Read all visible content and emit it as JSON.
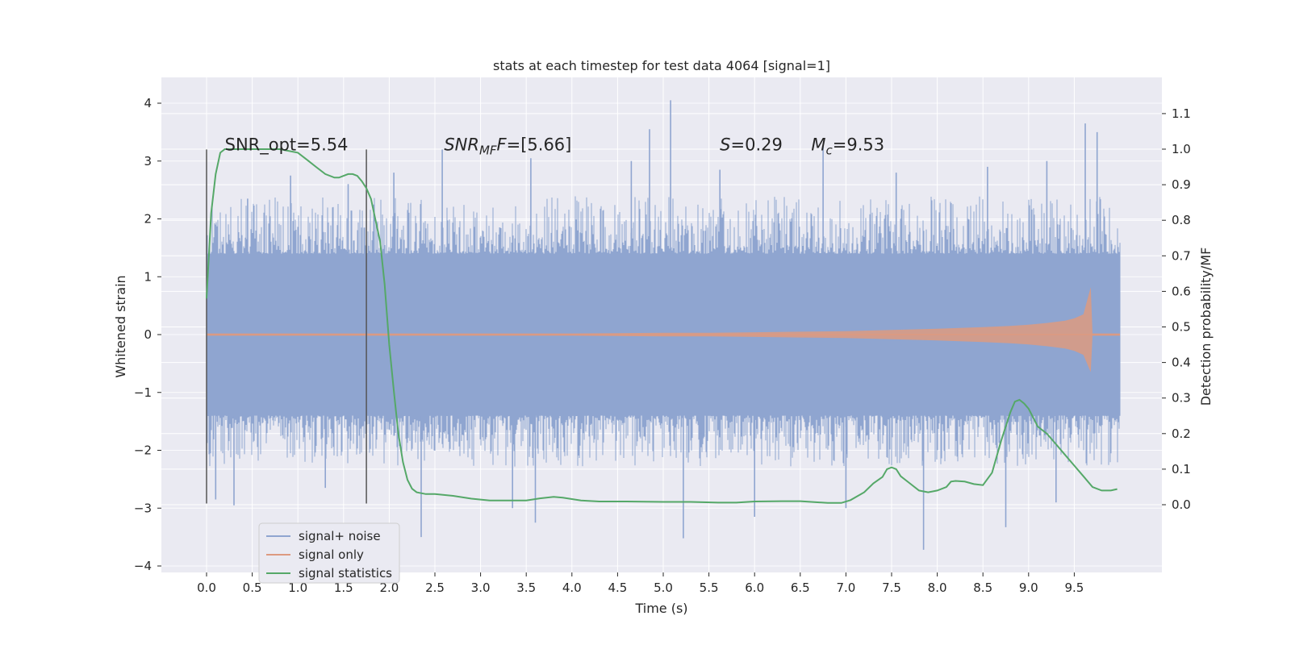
{
  "chart_data": {
    "type": "line",
    "title": "stats at each timestep for test data 4064 [signal=1]",
    "xlabel": "Time (s)",
    "ylabel": "Whitened strain",
    "y2label": "Detection probability/MF",
    "xlim": [
      -0.5,
      10.5
    ],
    "ylim": [
      -4.1,
      4.4
    ],
    "y2lim": [
      -0.19,
      1.2
    ],
    "x_ticks": [
      0.0,
      0.5,
      1.0,
      1.5,
      2.0,
      2.5,
      3.0,
      3.5,
      4.0,
      4.5,
      5.0,
      5.5,
      6.0,
      6.5,
      7.0,
      7.5,
      8.0,
      8.5,
      9.0,
      9.5
    ],
    "x_tick_labels": [
      "0.0",
      "0.5",
      "1.0",
      "1.5",
      "2.0",
      "2.5",
      "3.0",
      "3.5",
      "4.0",
      "4.5",
      "5.0",
      "5.5",
      "6.0",
      "6.5",
      "7.0",
      "7.5",
      "8.0",
      "8.5",
      "9.0",
      "9.5"
    ],
    "y_ticks": [
      4,
      3,
      2,
      1,
      0,
      -1,
      -2,
      -3,
      -4
    ],
    "y_tick_labels": [
      "4",
      "3",
      "2",
      "1",
      "0",
      "−1",
      "−2",
      "−3",
      "−4"
    ],
    "y2_ticks": [
      1.1,
      1.0,
      0.9,
      0.8,
      0.7,
      0.6,
      0.5,
      0.4,
      0.3,
      0.2,
      0.1,
      0.0
    ],
    "y2_tick_labels": [
      "1.1",
      "1.0",
      "0.9",
      "0.8",
      "0.7",
      "0.6",
      "0.5",
      "0.4",
      "0.3",
      "0.2",
      "0.1",
      "0.0"
    ],
    "grid": true,
    "legend_position": "lower-left",
    "vlines": [
      {
        "x": 0.0,
        "ymin": -2.92,
        "ymax": 3.2
      },
      {
        "x": 1.75,
        "ymin": -2.92,
        "ymax": 3.2
      }
    ],
    "annotations": [
      {
        "text": "SNR_opt=5.54",
        "x": 0.2,
        "y": 3.2
      },
      {
        "prefix": "",
        "italic": "SNR",
        "sub": "MF",
        "italic_after": "F",
        "rest": "=[5.66]",
        "x": 2.6,
        "y": 3.2
      },
      {
        "prefix": "",
        "italic": "S",
        "sub": "",
        "italic_after": "",
        "rest": "=0.29",
        "x": 5.62,
        "y": 3.2
      },
      {
        "prefix": "",
        "italic": "M",
        "sub": "c",
        "italic_after": "",
        "rest": "=9.53",
        "x": 6.62,
        "y": 3.2
      }
    ],
    "series": [
      {
        "name": "signal+ noise",
        "color": "#8fa5d0",
        "axis": "left",
        "x_range": [
          0.0,
          10.0
        ],
        "envelope_main": [
          -1.4,
          1.4
        ],
        "envelope_dense": [
          -2.2,
          2.3
        ],
        "peaks": [
          {
            "x": 0.45,
            "y": 2.35
          },
          {
            "x": 0.92,
            "y": 2.75
          },
          {
            "x": 1.55,
            "y": 2.6
          },
          {
            "x": 2.05,
            "y": 2.8
          },
          {
            "x": 2.58,
            "y": 3.2
          },
          {
            "x": 3.55,
            "y": 3.05
          },
          {
            "x": 4.65,
            "y": 3.0
          },
          {
            "x": 4.85,
            "y": 3.55
          },
          {
            "x": 5.08,
            "y": 4.05
          },
          {
            "x": 5.62,
            "y": 2.85
          },
          {
            "x": 6.75,
            "y": 3.25
          },
          {
            "x": 7.55,
            "y": 2.8
          },
          {
            "x": 8.55,
            "y": 2.9
          },
          {
            "x": 9.2,
            "y": 3.0
          },
          {
            "x": 9.62,
            "y": 3.65
          },
          {
            "x": 9.75,
            "y": 3.5
          }
        ],
        "troughs": [
          {
            "x": 0.1,
            "y": -2.85
          },
          {
            "x": 0.3,
            "y": -2.95
          },
          {
            "x": 1.3,
            "y": -2.65
          },
          {
            "x": 2.35,
            "y": -3.5
          },
          {
            "x": 3.35,
            "y": -3.0
          },
          {
            "x": 3.6,
            "y": -3.25
          },
          {
            "x": 5.22,
            "y": -3.52
          },
          {
            "x": 6.0,
            "y": -3.15
          },
          {
            "x": 7.0,
            "y": -3.0
          },
          {
            "x": 7.85,
            "y": -3.72
          },
          {
            "x": 8.75,
            "y": -3.33
          },
          {
            "x": 9.3,
            "y": -2.9
          }
        ]
      },
      {
        "name": "signal only",
        "color": "#dd9a80",
        "axis": "left",
        "x": [
          0.0,
          1.0,
          2.0,
          3.0,
          4.0,
          5.0,
          5.5,
          6.0,
          6.5,
          7.0,
          7.5,
          8.0,
          8.5,
          8.8,
          9.0,
          9.2,
          9.4,
          9.5,
          9.6,
          9.68,
          9.7,
          10.0
        ],
        "amplitude": [
          0.02,
          0.02,
          0.02,
          0.02,
          0.02,
          0.03,
          0.03,
          0.04,
          0.05,
          0.06,
          0.08,
          0.1,
          0.13,
          0.15,
          0.17,
          0.2,
          0.24,
          0.28,
          0.35,
          0.82,
          0.02,
          0.02
        ]
      },
      {
        "name": "signal statistics",
        "color": "#55a868",
        "axis": "right",
        "x": [
          0.0,
          0.05,
          0.1,
          0.15,
          0.2,
          0.3,
          0.5,
          0.8,
          1.0,
          1.1,
          1.2,
          1.3,
          1.4,
          1.45,
          1.5,
          1.55,
          1.6,
          1.65,
          1.7,
          1.75,
          1.8,
          1.9,
          1.95,
          2.0,
          2.05,
          2.1,
          2.15,
          2.2,
          2.25,
          2.3,
          2.4,
          2.5,
          2.7,
          2.9,
          3.1,
          3.3,
          3.5,
          3.65,
          3.8,
          3.9,
          4.1,
          4.3,
          4.6,
          5.0,
          5.3,
          5.6,
          5.8,
          6.0,
          6.3,
          6.5,
          6.8,
          6.95,
          7.05,
          7.2,
          7.3,
          7.4,
          7.45,
          7.5,
          7.55,
          7.6,
          7.7,
          7.8,
          7.9,
          8.0,
          8.1,
          8.15,
          8.2,
          8.3,
          8.4,
          8.5,
          8.6,
          8.7,
          8.8,
          8.85,
          8.9,
          8.95,
          9.0,
          9.1,
          9.2,
          9.3,
          9.4,
          9.5,
          9.6,
          9.7,
          9.8,
          9.9,
          9.97
        ],
        "values": [
          0.58,
          0.82,
          0.93,
          0.99,
          1.0,
          1.0,
          1.0,
          1.0,
          0.99,
          0.97,
          0.95,
          0.93,
          0.92,
          0.92,
          0.925,
          0.93,
          0.93,
          0.925,
          0.91,
          0.89,
          0.86,
          0.74,
          0.62,
          0.45,
          0.32,
          0.2,
          0.12,
          0.07,
          0.045,
          0.035,
          0.03,
          0.03,
          0.025,
          0.017,
          0.012,
          0.012,
          0.012,
          0.018,
          0.022,
          0.02,
          0.012,
          0.009,
          0.009,
          0.008,
          0.008,
          0.006,
          0.006,
          0.009,
          0.01,
          0.01,
          0.005,
          0.005,
          0.013,
          0.035,
          0.06,
          0.078,
          0.1,
          0.105,
          0.1,
          0.08,
          0.06,
          0.04,
          0.035,
          0.04,
          0.05,
          0.065,
          0.067,
          0.065,
          0.058,
          0.055,
          0.09,
          0.18,
          0.26,
          0.29,
          0.295,
          0.285,
          0.27,
          0.22,
          0.2,
          0.17,
          0.14,
          0.11,
          0.08,
          0.05,
          0.04,
          0.04,
          0.044
        ]
      }
    ]
  }
}
